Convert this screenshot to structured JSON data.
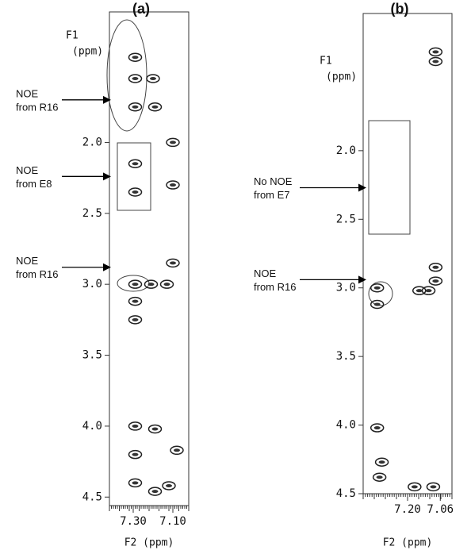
{
  "chart_data": [
    {
      "type": "contour",
      "title": "(a)",
      "xlabel": "F2 (ppm)",
      "ylabel": [
        "F1",
        "(ppm)"
      ],
      "xlim": [
        7.42,
        7.02
      ],
      "xticks": [
        {
          "value": 7.3,
          "label": "7.30"
        },
        {
          "value": 7.1,
          "label": "7.10"
        }
      ],
      "ylim": [
        1.08,
        4.56
      ],
      "yticks": [
        {
          "value": 2,
          "label": "2.0"
        },
        {
          "value": 2.5,
          "label": "2.5"
        },
        {
          "value": 3,
          "label": "3.0"
        },
        {
          "value": 3.5,
          "label": "3.5"
        },
        {
          "value": 4,
          "label": "4.0"
        },
        {
          "value": 4.5,
          "label": "4.5"
        }
      ],
      "peaks": {
        "x": [
          7.29,
          7.29,
          7.29,
          7.2,
          7.19,
          7.29,
          7.29,
          7.1,
          7.1,
          7.1,
          7.29,
          7.29,
          7.29,
          7.21,
          7.13,
          7.29,
          7.29,
          7.29,
          7.19,
          7.19,
          7.12,
          7.08
        ],
        "y": [
          1.4,
          1.55,
          1.75,
          1.55,
          1.75,
          2.15,
          2.35,
          2.0,
          2.3,
          2.85,
          3.0,
          3.12,
          3.25,
          3.0,
          3.0,
          4.0,
          4.2,
          4.4,
          4.02,
          4.46,
          4.42,
          4.17
        ]
      },
      "annotations": [
        {
          "text": [
            "NOE",
            "from R16"
          ],
          "y": 1.7
        },
        {
          "text": [
            "NOE",
            "from E8"
          ],
          "y": 2.24
        },
        {
          "text": [
            "NOE",
            "from R16"
          ],
          "y": 2.88
        }
      ]
    },
    {
      "type": "contour",
      "title": "(b)",
      "xlabel": "F2 (ppm)",
      "ylabel": [
        "F1",
        "(ppm)"
      ],
      "xlim": [
        7.39,
        7.01
      ],
      "xticks": [
        {
          "value": 7.2,
          "label": "7.20"
        },
        {
          "value": 7.06,
          "label": "7.06"
        }
      ],
      "ylim": [
        1.0,
        4.5
      ],
      "yticks": [
        {
          "value": 2,
          "label": "2.0"
        },
        {
          "value": 2.5,
          "label": "2.5"
        },
        {
          "value": 3,
          "label": "3.0"
        },
        {
          "value": 3.5,
          "label": "3.5"
        },
        {
          "value": 4,
          "label": "4.0"
        },
        {
          "value": 4.5,
          "label": "4.5"
        }
      ],
      "peaks": {
        "x": [
          7.08,
          7.08,
          7.33,
          7.33,
          7.15,
          7.11,
          7.08,
          7.08,
          7.33,
          7.31,
          7.32,
          7.09,
          7.17
        ],
        "y": [
          1.35,
          1.28,
          3.0,
          3.12,
          3.02,
          3.02,
          2.95,
          2.85,
          4.02,
          4.27,
          4.38,
          4.45,
          4.45
        ]
      },
      "annotations": [
        {
          "text": [
            "No NOE",
            "from E7"
          ],
          "y": 2.27
        },
        {
          "text": [
            "NOE",
            "from R16"
          ],
          "y": 2.94
        }
      ]
    }
  ]
}
